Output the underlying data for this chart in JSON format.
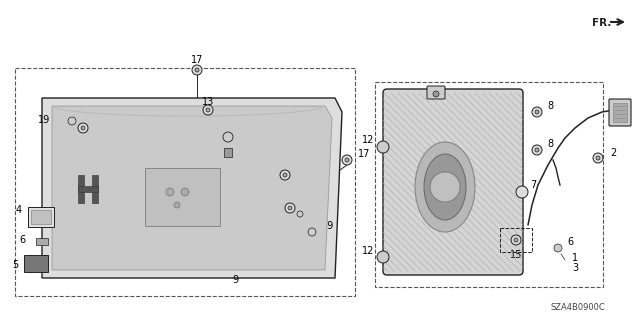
{
  "bg_color": "#ffffff",
  "diagram_code": "SZA4B0900C",
  "gray": "#555555",
  "dk": "#222222",
  "panel_fc": "#e0e0e0",
  "inner_fc": "#c8c8c8"
}
